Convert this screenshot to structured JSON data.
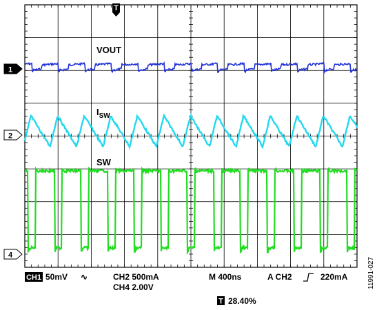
{
  "chart_data": {
    "type": "line",
    "grid": true,
    "divisions": {
      "x": 10,
      "y": 8
    },
    "trigger_marker": "T",
    "series": [
      {
        "name": "VOUT",
        "channel": "1",
        "color": "#1f2fd6",
        "waveform": "ripple",
        "period_div": 0.8
      },
      {
        "name": "I",
        "name_sub": "SW",
        "channel": "2",
        "color": "#22d8ee",
        "waveform": "triangle",
        "period_div": 0.8
      },
      {
        "name": "SW",
        "channel": "4",
        "color": "#22dd22",
        "waveform": "square",
        "period_div": 0.8,
        "duty": 0.284
      }
    ],
    "readouts": {
      "ch1_badge": "CH1",
      "ch1_scale": "50mV",
      "ch1_coupling_symbol": "∿",
      "ch2_scale": "CH2 500mA",
      "ch4_scale": "CH4 2.00V",
      "timebase": "M 400ns",
      "trigger": "A CH2",
      "trigger_level": "220mA",
      "trigger_position_badge": "T",
      "trigger_position": "28.40%"
    },
    "figure_id": "11991-027"
  }
}
